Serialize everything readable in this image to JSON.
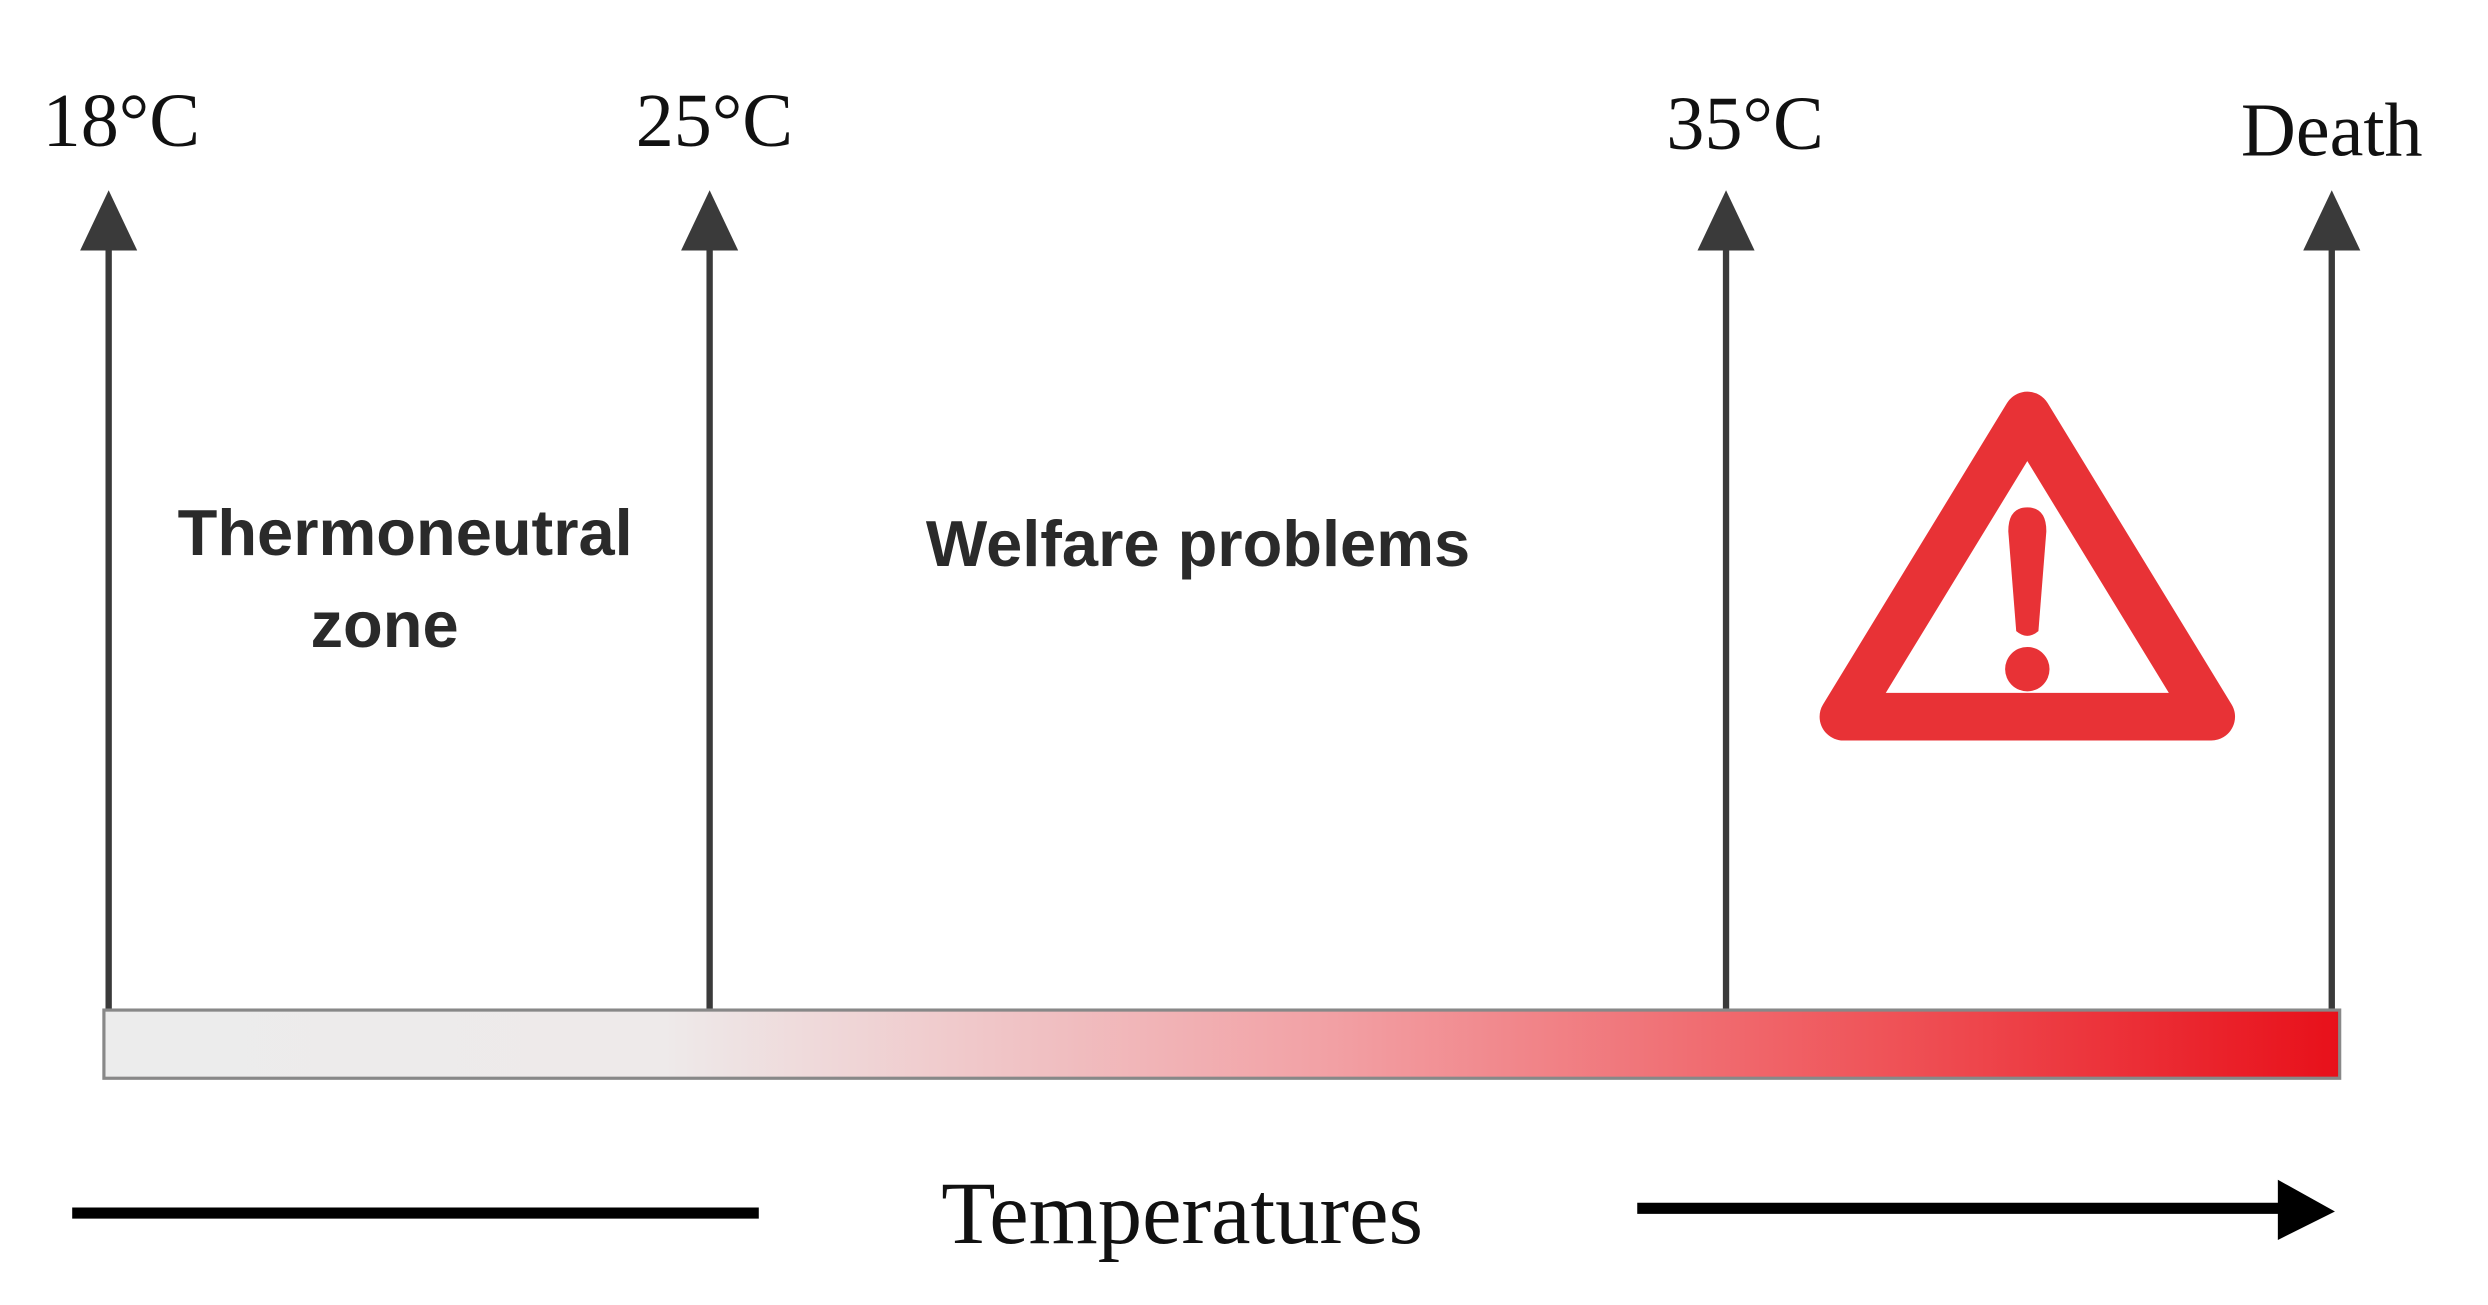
{
  "markers": [
    {
      "label": "18°C"
    },
    {
      "label": "25°C"
    },
    {
      "label": "35°C"
    },
    {
      "label": "Death"
    }
  ],
  "zones": [
    {
      "lines": [
        "Thermoneutral",
        "zone"
      ]
    },
    {
      "lines": [
        "Welfare problems"
      ]
    }
  ],
  "axis_label": "Temperatures"
}
